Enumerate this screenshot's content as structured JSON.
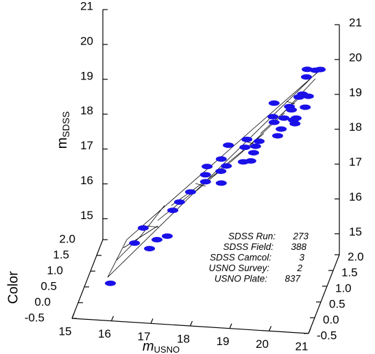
{
  "chart_data": {
    "type": "scatter3d",
    "xlabel": "m",
    "xlabel_sub": "USNO",
    "ylabel": "Color",
    "zlabel": "m",
    "zlabel_sub": "SDSS",
    "color": "#1a10e8",
    "xlim": [
      15,
      21
    ],
    "xticks": [
      15,
      16,
      17,
      18,
      19,
      20,
      21
    ],
    "ylim": [
      -0.5,
      2.0
    ],
    "yticks": [
      -0.5,
      {
        "value": 0,
        "label": "0.0"
      },
      0.5,
      {
        "value": 1,
        "label": "1.0"
      },
      1.5,
      {
        "value": 2,
        "label": "2.0"
      }
    ],
    "zlim": [
      14.4,
      21
    ],
    "zticks": [
      15,
      16,
      17,
      18,
      19,
      20,
      21
    ],
    "x": [
      15.88,
      16.18,
      16.4,
      16.56,
      16.75,
      17.01,
      17.15,
      17.32,
      17.6,
      17.98,
      18.02,
      17.98,
      18.38,
      18.37,
      18.38,
      18.51,
      18.56,
      18.94,
      18.98,
      19.03,
      19.13,
      19.2,
      19.25,
      19.34,
      19.69,
      19.72,
      19.72,
      19.81,
      19.9,
      19.97,
      20.11,
      20.16,
      20.21,
      20.25,
      20.28,
      20.35,
      20.44,
      20.51,
      20.54,
      20.59,
      20.56,
      20.77,
      20.89
    ],
    "y": [
      -0.2,
      0.8,
      0.8,
      0.8,
      0.8,
      0.8,
      0.8,
      0.8,
      0.8,
      0.8,
      0.8,
      0.8,
      0.8,
      0.8,
      0.8,
      0.8,
      0.8,
      0.8,
      0.8,
      0.8,
      0.8,
      0.8,
      0.8,
      0.8,
      0.8,
      0.8,
      0.8,
      0.8,
      0.8,
      0.8,
      0.8,
      0.8,
      0.8,
      0.8,
      0.8,
      0.8,
      0.8,
      0.8,
      0.8,
      0.8,
      0.8,
      0.8,
      0.8
    ],
    "z": [
      15.2,
      15.47,
      15.92,
      15.34,
      15.61,
      15.73,
      16.48,
      16.73,
      17.04,
      17.36,
      17.8,
      17.56,
      17.35,
      17.69,
      18.04,
      17.85,
      18.45,
      18.0,
      18.42,
      18.65,
      18.04,
      18.28,
      18.47,
      18.62,
      19.35,
      19.19,
      19.74,
      18.81,
      19.01,
      19.33,
      19.67,
      19.58,
      19.29,
      19.19,
      19.35,
      19.96,
      20.05,
      19.68,
      20.55,
      20.0,
      20.77,
      20.76,
      20.79
    ],
    "annotations": [
      {
        "label": "SDSS Run:",
        "value": 273
      },
      {
        "label": "SDSS Field:",
        "value": 388
      },
      {
        "label": "SDSS Camcol:",
        "value": 3
      },
      {
        "label": "USNO Survey:",
        "value": 2
      },
      {
        "label": "USNO Plate:",
        "value": 837
      }
    ]
  }
}
